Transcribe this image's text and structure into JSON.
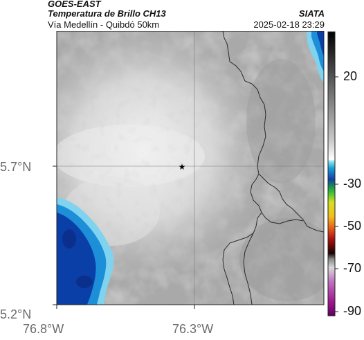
{
  "header": {
    "satellite": "GOES-EAST",
    "product": "Temperatura de Brillo CH13",
    "area": "Vía Medellín - Quibdó 50km",
    "organization": "SIATA",
    "timestamp": "2025-02-18 23:29"
  },
  "axes": {
    "lat_labels": [
      {
        "value": 5.7,
        "text": "5.7°N"
      },
      {
        "value": 5.2,
        "text": "5.2°N"
      }
    ],
    "lon_labels": [
      {
        "value": -76.8,
        "text": "76.8°W"
      },
      {
        "value": -76.3,
        "text": "76.3°W"
      }
    ],
    "gridlines": true
  },
  "marker": {
    "symbol": "★",
    "lat": 5.7,
    "lon": -76.32
  },
  "colorbar": {
    "ticks": [
      {
        "value": 20,
        "text": "20"
      },
      {
        "value": -30,
        "text": "-30"
      },
      {
        "value": -50,
        "text": "-50"
      },
      {
        "value": -70,
        "text": "-70"
      },
      {
        "value": -90,
        "text": "-90"
      }
    ],
    "range": [
      -95,
      45
    ]
  },
  "colors": {
    "cloud_cold": "#0a3fa8",
    "cloud_mid": "#1c8fd8",
    "cloud_edge": "#7fd3ef",
    "ground_gray": "#a9a9a9",
    "boundary": "#2a2a2a"
  }
}
